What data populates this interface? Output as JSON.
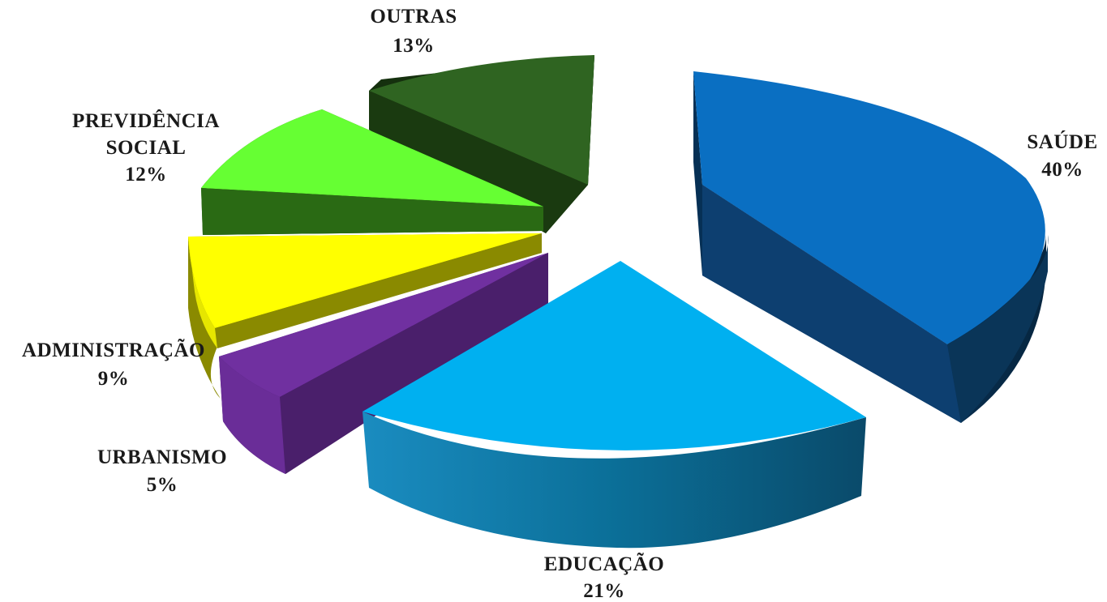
{
  "chart_data": {
    "type": "pie",
    "title": "",
    "slices": [
      {
        "label_lines": [
          "SAÚDE"
        ],
        "percent_text": "40%",
        "value": 40,
        "color": "#0a6fc2",
        "side_color": "#0a3a66"
      },
      {
        "label_lines": [
          "EDUCAÇÃO"
        ],
        "percent_text": "21%",
        "value": 21,
        "color": "#00b0f0",
        "side_color": "#0b6f98"
      },
      {
        "label_lines": [
          "URBANISMO"
        ],
        "percent_text": "5%",
        "value": 5,
        "color": "#7030a0",
        "side_color": "#4a1f6b"
      },
      {
        "label_lines": [
          "ADMINISTRAÇÃO"
        ],
        "percent_text": "9%",
        "value": 9,
        "color": "#ffff00",
        "side_color": "#8a8a00"
      },
      {
        "label_lines": [
          "PREVIDÊNCIA",
          "SOCIAL"
        ],
        "percent_text": "12%",
        "value": 12,
        "color": "#66ff33",
        "side_color": "#2a6a14"
      },
      {
        "label_lines": [
          "OUTRAS"
        ],
        "percent_text": "13%",
        "value": 13,
        "color": "#2f6421",
        "side_color": "#15300e"
      }
    ]
  }
}
